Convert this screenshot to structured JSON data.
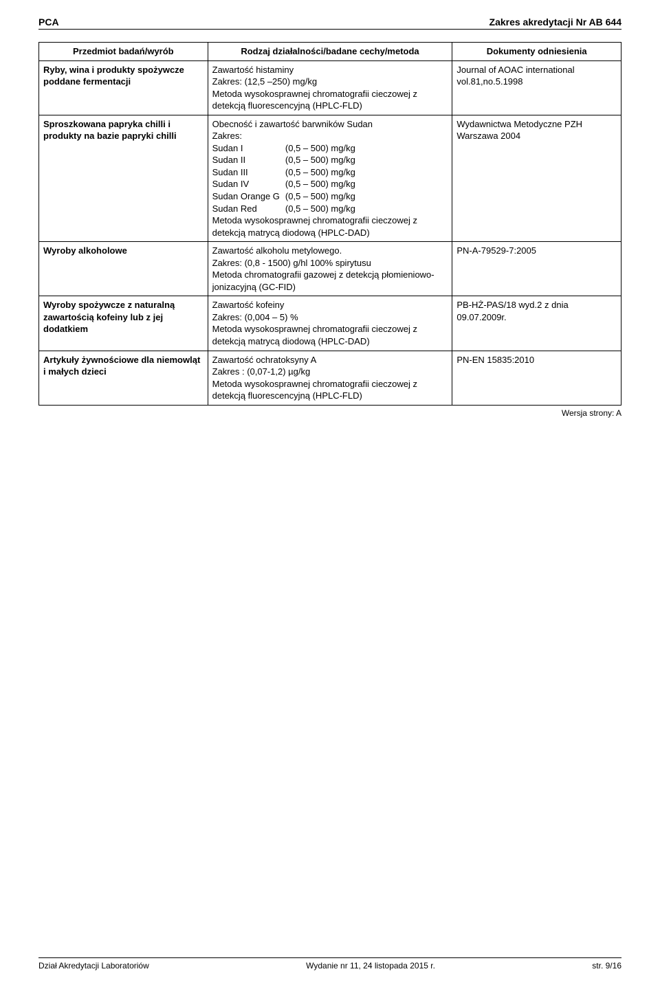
{
  "header": {
    "left": "PCA",
    "right": "Zakres akredytacji Nr AB 644"
  },
  "table": {
    "headers": {
      "col1": "Przedmiot badań/wyrób",
      "col2": "Rodzaj działalności/badane cechy/metoda",
      "col3": "Dokumenty odniesienia"
    },
    "rows": [
      {
        "subject": "Ryby, wina i produkty spożywcze poddane fermentacji",
        "method_lines": [
          "Zawartość histaminy",
          "Zakres: (12,5 –250) mg/kg",
          "Metoda wysokosprawnej chromatografii cieczowej z detekcją fluorescencyjną (HPLC-FLD)"
        ],
        "docs": "Journal of AOAC international vol.81,no.5.1998"
      },
      {
        "subject": "Sproszkowana papryka chilli i produkty na bazie papryki chilli",
        "method_intro": [
          "Obecność i zawartość barwników Sudan",
          "Zakres:"
        ],
        "sudan_rows": [
          [
            "Sudan I",
            "(0,5 – 500) mg/kg"
          ],
          [
            "Sudan II",
            "(0,5 – 500) mg/kg"
          ],
          [
            "Sudan III",
            "(0,5 – 500) mg/kg"
          ],
          [
            "Sudan IV",
            "(0,5 – 500) mg/kg"
          ],
          [
            "Sudan Orange G",
            "(0,5 – 500) mg/kg"
          ],
          [
            "Sudan Red",
            "(0,5 – 500) mg/kg"
          ]
        ],
        "method_outro": [
          "Metoda wysokosprawnej chromatografii cieczowej z detekcją matrycą diodową (HPLC-DAD)"
        ],
        "docs": "Wydawnictwa Metodyczne PZH Warszawa 2004"
      },
      {
        "subject": "Wyroby alkoholowe",
        "method_lines": [
          "Zawartość alkoholu metylowego.",
          "Zakres: (0,8 - 1500) g/hl 100% spirytusu",
          "Metoda chromatografii gazowej z detekcją płomieniowo-jonizacyjną (GC-FID)"
        ],
        "docs": "PN-A-79529-7:2005"
      },
      {
        "subject": "Wyroby spożywcze z naturalną zawartością kofeiny lub z jej dodatkiem",
        "method_lines": [
          "Zawartość kofeiny",
          "Zakres: (0,004 – 5) %",
          "Metoda wysokosprawnej chromatografii cieczowej z detekcją matrycą diodową (HPLC-DAD)"
        ],
        "docs": "PB-HŻ-PAS/18 wyd.2 z dnia  09.07.2009r."
      },
      {
        "subject": "Artykuły żywnościowe dla niemowląt i małych dzieci",
        "method_lines": [
          "Zawartość ochratoksyny A",
          "Zakres :  (0,07-1,2) µg/kg",
          "Metoda wysokosprawnej chromatografii cieczowej z detekcją fluorescencyjną (HPLC-FLD)"
        ],
        "docs": "PN-EN 15835:2010"
      }
    ]
  },
  "version_label": "Wersja strony: A",
  "footer": {
    "left": "Dział Akredytacji Laboratoriów",
    "center": "Wydanie nr 11, 24 listopada 2015 r.",
    "right": "str. 9/16"
  }
}
